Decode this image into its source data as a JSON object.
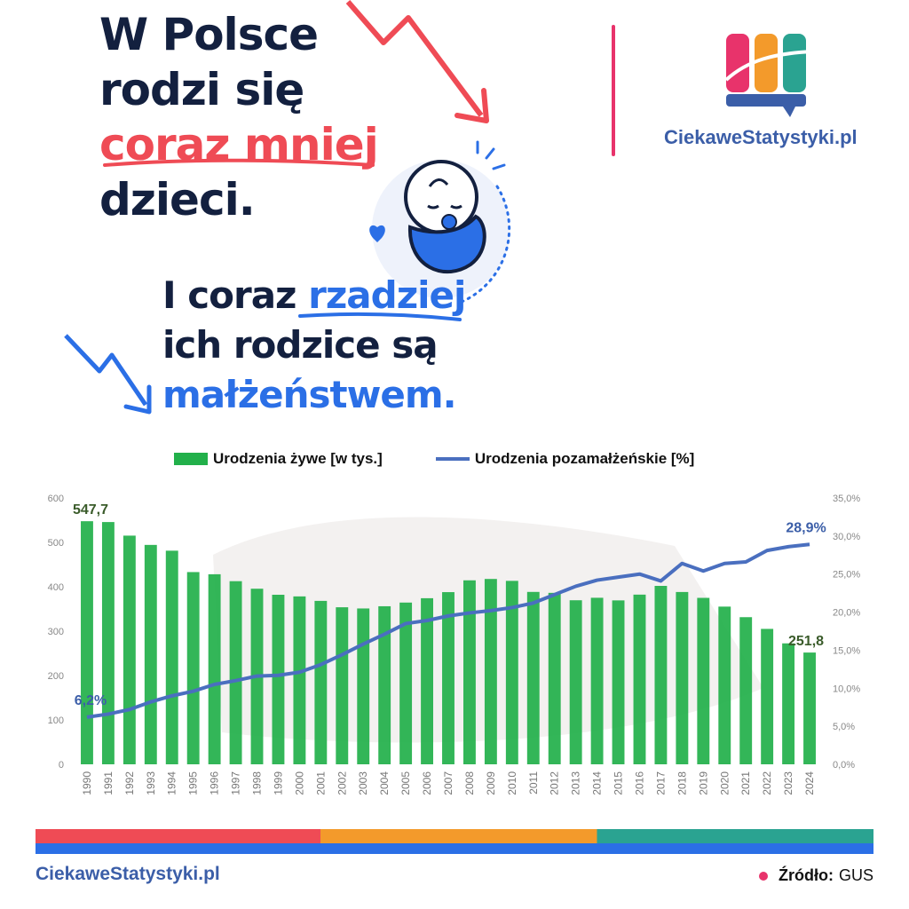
{
  "headline": {
    "line1": "W Polsce",
    "line2": "rodzi się",
    "line3": "coraz mniej",
    "line4": "dzieci."
  },
  "subheadline": {
    "line1_a": "I coraz ",
    "line1_b": "rzadziej",
    "line2": "ich rodzice są",
    "line3": "małżeństwem."
  },
  "brand": {
    "name": "CiekaweStatystyki.pl"
  },
  "footer": {
    "brand": "CiekaweStatystyki.pl",
    "source_label": "Źródło:",
    "source_value": "GUS"
  },
  "colors": {
    "bars": "#22b04a",
    "line": "#4a6fbf",
    "accent_red": "#ef4b55",
    "accent_blue": "#2b6fe6",
    "stripe_red": "#ef4b55",
    "stripe_orange": "#f39a2b",
    "stripe_teal": "#2aa391",
    "stripe_blue": "#2b6fe6"
  },
  "chart_data": {
    "type": "bar",
    "categories": [
      "1990",
      "1991",
      "1992",
      "1993",
      "1994",
      "1995",
      "1996",
      "1997",
      "1998",
      "1999",
      "2000",
      "2001",
      "2002",
      "2003",
      "2004",
      "2005",
      "2006",
      "2007",
      "2008",
      "2009",
      "2010",
      "2011",
      "2012",
      "2013",
      "2014",
      "2015",
      "2016",
      "2017",
      "2018",
      "2019",
      "2020",
      "2021",
      "2022",
      "2023",
      "2024"
    ],
    "series": [
      {
        "name": "Urodzenia żywe [w tys.]",
        "kind": "bar",
        "axis": "left",
        "values": [
          547.7,
          545.8,
          515.2,
          494.3,
          481.3,
          433.1,
          428.2,
          412.6,
          395.6,
          382.0,
          378.3,
          368.2,
          353.8,
          351.1,
          356.1,
          364.4,
          374.2,
          387.9,
          414.5,
          417.6,
          413.3,
          388.4,
          386.3,
          369.6,
          375.2,
          369.3,
          382.3,
          402.0,
          388.2,
          375.0,
          355.3,
          331.5,
          305.1,
          272.5,
          251.8
        ]
      },
      {
        "name": "Urodzenia pozamałżeńskie [%]",
        "kind": "line",
        "axis": "right",
        "values": [
          6.2,
          6.6,
          7.2,
          8.2,
          9.0,
          9.6,
          10.5,
          11.0,
          11.6,
          11.7,
          12.1,
          13.1,
          14.4,
          15.8,
          17.1,
          18.5,
          18.9,
          19.5,
          19.9,
          20.2,
          20.6,
          21.2,
          22.3,
          23.4,
          24.2,
          24.6,
          25.0,
          24.1,
          26.4,
          25.4,
          26.4,
          26.6,
          28.1,
          28.6,
          28.9
        ]
      }
    ],
    "y_left": {
      "ylim": [
        0,
        600
      ],
      "ticks": [
        "0",
        "100",
        "200",
        "300",
        "400",
        "500",
        "600"
      ]
    },
    "y_right": {
      "ylim": [
        0,
        35
      ],
      "ticks": [
        "0,0%",
        "5,0%",
        "10,0%",
        "15,0%",
        "20,0%",
        "25,0%",
        "30,0%",
        "35,0%"
      ]
    },
    "annotations": [
      {
        "text": "547,7",
        "series": 0,
        "index": 0
      },
      {
        "text": "251,8",
        "series": 0,
        "index": 34
      },
      {
        "text": "6,2%",
        "series": 1,
        "index": 0
      },
      {
        "text": "28,9%",
        "series": 1,
        "index": 34
      }
    ],
    "legend_position": "top",
    "grid": false
  }
}
